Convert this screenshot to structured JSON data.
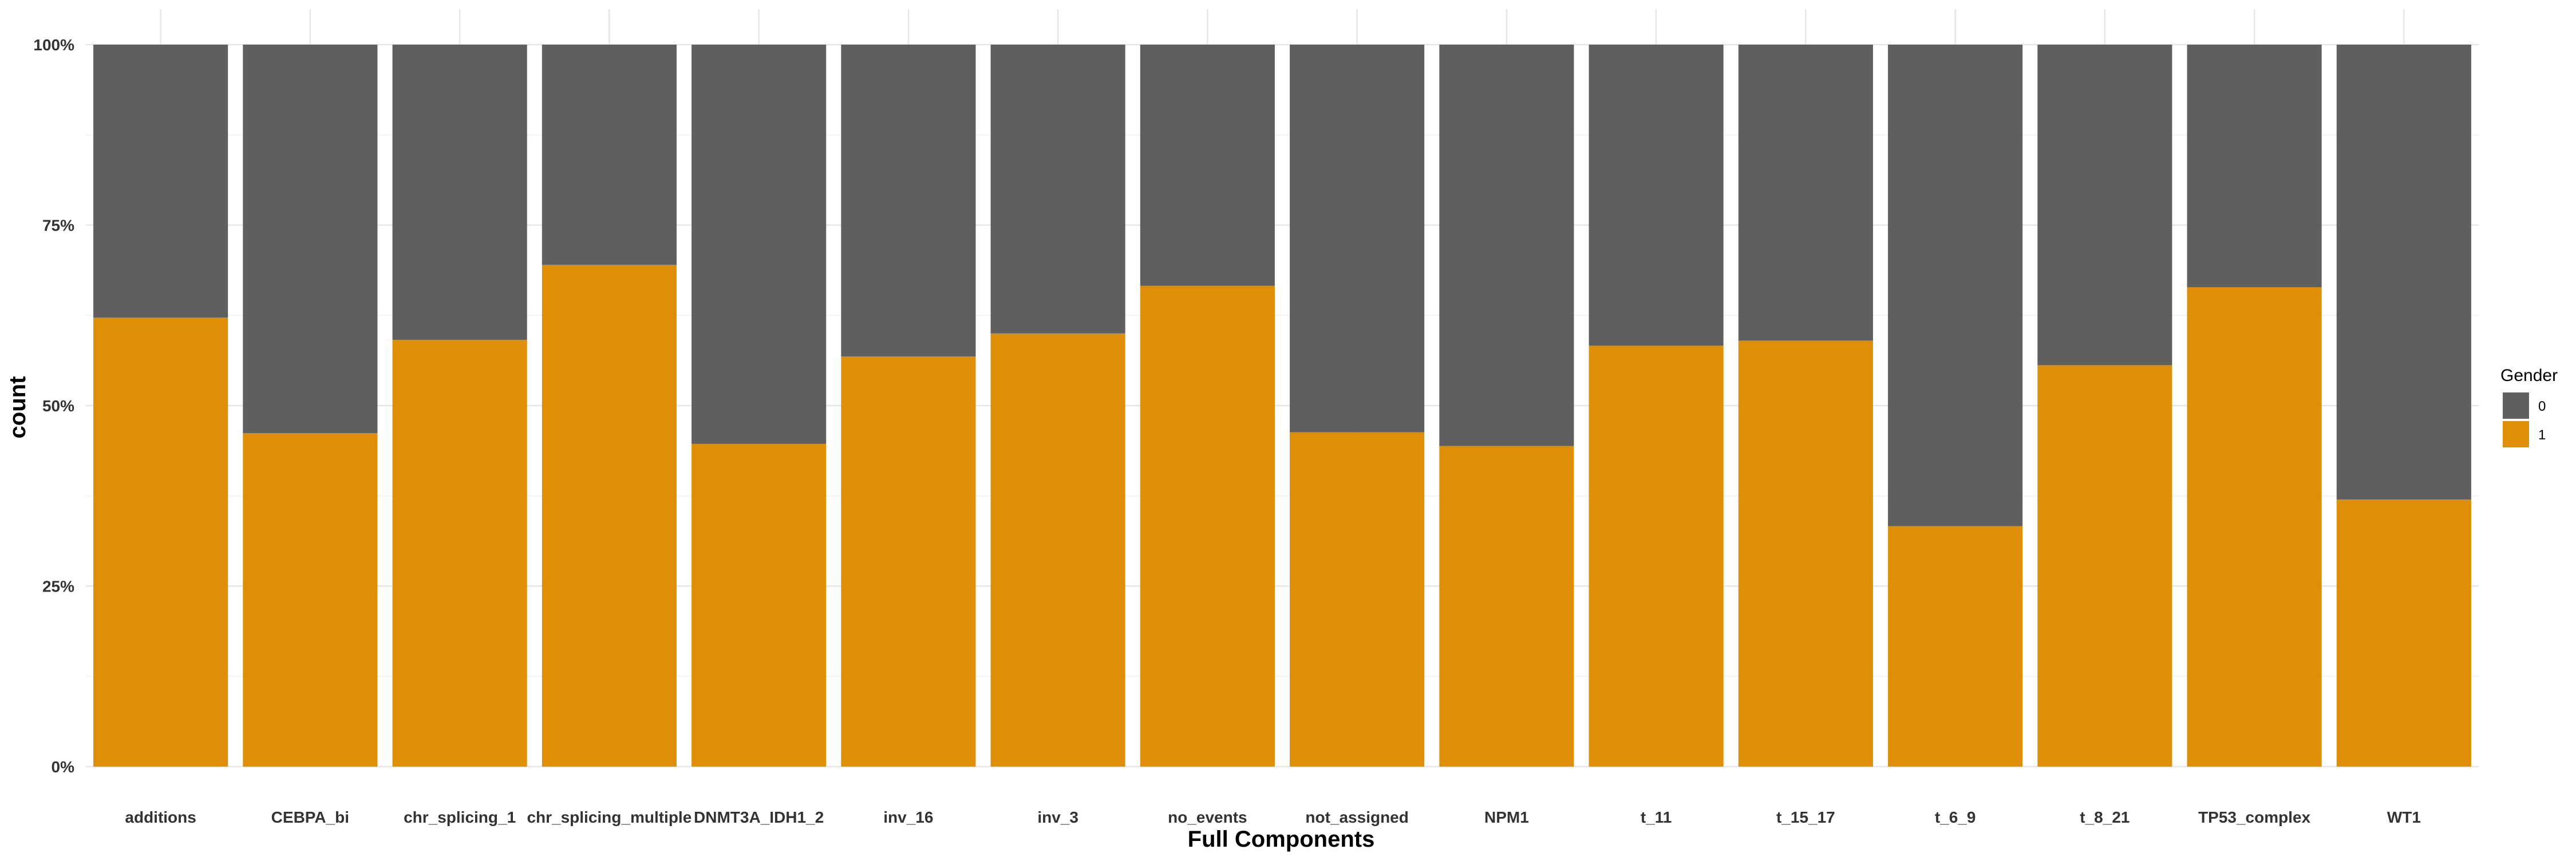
{
  "chart_data": {
    "type": "bar",
    "stacked": true,
    "position": "fill",
    "xlabel": "Full Components",
    "ylabel": "count",
    "ylim": [
      0,
      1
    ],
    "y_ticks": [
      0,
      0.25,
      0.5,
      0.75,
      1
    ],
    "y_tick_labels": [
      "0%",
      "25%",
      "50%",
      "75%",
      "100%"
    ],
    "grid": true,
    "legend": {
      "title": "Gender",
      "placement": "right"
    },
    "categories": [
      "additions",
      "CEBPA_bi",
      "chr_splicing_1",
      "chr_splicing_multiple",
      "DNMT3A_IDH1_2",
      "inv_16",
      "inv_3",
      "no_events",
      "not_assigned",
      "NPM1",
      "t_11",
      "t_15_17",
      "t_6_9",
      "t_8_21",
      "TP53_complex",
      "WT1"
    ],
    "series": [
      {
        "name": "0",
        "color": "#5f5f5f",
        "values": [
          0.378,
          0.538,
          0.409,
          0.305,
          0.553,
          0.432,
          0.4,
          0.334,
          0.537,
          0.556,
          0.417,
          0.41,
          0.667,
          0.444,
          0.336,
          0.63
        ]
      },
      {
        "name": "1",
        "color": "#df8e08",
        "values": [
          0.622,
          0.462,
          0.591,
          0.695,
          0.447,
          0.568,
          0.6,
          0.666,
          0.463,
          0.444,
          0.583,
          0.59,
          0.333,
          0.556,
          0.664,
          0.37
        ]
      }
    ]
  }
}
